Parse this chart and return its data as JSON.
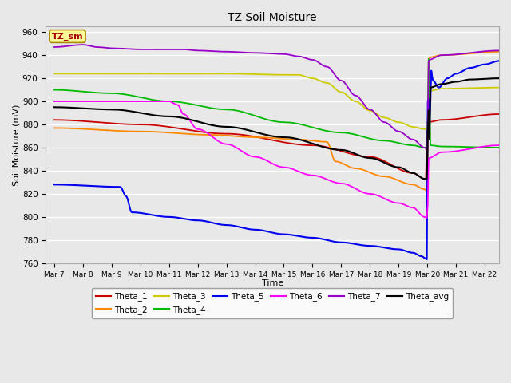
{
  "title": "TZ Soil Moisture",
  "xlabel": "Time",
  "ylabel": "Soil Moisture (mV)",
  "ylim": [
    760,
    965
  ],
  "xlim": [
    -0.3,
    15.5
  ],
  "bg_color": "#e8e8e8",
  "series": {
    "Theta_1": {
      "color": "#cc0000",
      "lw": 1.3
    },
    "Theta_2": {
      "color": "#ff8800",
      "lw": 1.3
    },
    "Theta_3": {
      "color": "#cccc00",
      "lw": 1.3
    },
    "Theta_4": {
      "color": "#00bb00",
      "lw": 1.3
    },
    "Theta_5": {
      "color": "#0000ee",
      "lw": 1.5
    },
    "Theta_6": {
      "color": "#ff00ff",
      "lw": 1.3
    },
    "Theta_7": {
      "color": "#9900cc",
      "lw": 1.3
    },
    "Theta_avg": {
      "color": "#000000",
      "lw": 1.5
    }
  },
  "xtick_labels": [
    "Mar 7",
    "Mar 8",
    "Mar 9",
    "Mar 10",
    "Mar 11",
    "Mar 12",
    "Mar 13",
    "Mar 14",
    "Mar 15",
    "Mar 16",
    "Mar 17",
    "Mar 18",
    "Mar 19",
    "Mar 20",
    "Mar 21",
    "Mar 22"
  ],
  "ytick_values": [
    760,
    780,
    800,
    820,
    840,
    860,
    880,
    900,
    920,
    940,
    960
  ],
  "legend_order": [
    "Theta_1",
    "Theta_2",
    "Theta_3",
    "Theta_4",
    "Theta_5",
    "Theta_6",
    "Theta_7",
    "Theta_avg"
  ]
}
